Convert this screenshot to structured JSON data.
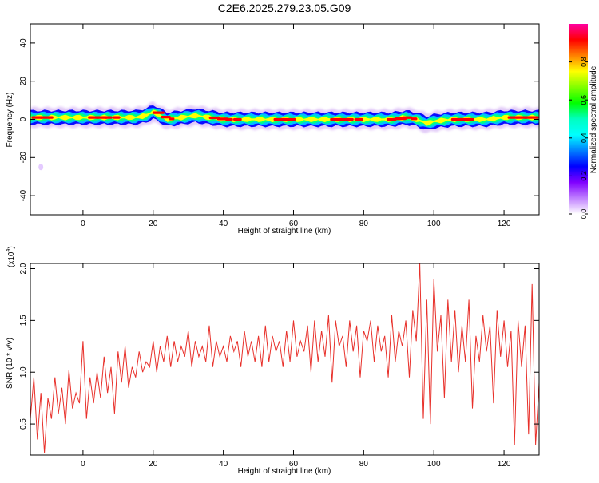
{
  "title": "C2E6.2025.279.23.05.G09",
  "colors": {
    "snr_line": "#e8302a",
    "frame": "#000000",
    "spectrum_band": [
      "#8a2be2",
      "#0000ff",
      "#00bfff",
      "#00ff7f",
      "#ffff00",
      "#ff0000"
    ]
  },
  "chart_data": [
    {
      "type": "heatmap",
      "title": "",
      "xlabel": "Height of straight line (km)",
      "ylabel": "Frequency (Hz)",
      "xlim": [
        -15,
        130
      ],
      "ylim": [
        -50,
        50
      ],
      "x_ticks": [
        0,
        20,
        40,
        60,
        80,
        100,
        120
      ],
      "y_ticks": [
        -40,
        -20,
        0,
        20,
        40
      ],
      "colorbar": {
        "label": "Normalized spectral amplitude",
        "range": [
          0.0,
          1.0
        ],
        "ticks": [
          "0.0",
          "0.2",
          "0.4",
          "0.6",
          "0.8"
        ],
        "colormap": [
          "#ff00a0",
          "#ff0000",
          "#ff8000",
          "#ffff00",
          "#80ff00",
          "#00ff00",
          "#00ffc0",
          "#00ffff",
          "#0080ff",
          "#0000ff",
          "#8000ff",
          "#c080ff",
          "#ffffff"
        ]
      },
      "ridge": {
        "description_hz": "spectral ridge near 0 Hz",
        "x": [
          -14,
          -8,
          -3,
          0,
          5,
          10,
          15,
          18,
          20,
          22,
          24,
          28,
          32,
          36,
          40,
          45,
          50,
          60,
          70,
          80,
          88,
          92,
          95,
          98,
          100,
          105,
          110,
          115,
          120,
          125,
          129
        ],
        "y": [
          1,
          1,
          1,
          1,
          1,
          1,
          1,
          2,
          4,
          2,
          0,
          1,
          2,
          1,
          0,
          0,
          0,
          0,
          0,
          0,
          0,
          1,
          0,
          -2,
          -1,
          0,
          0,
          0,
          1,
          1,
          1
        ]
      },
      "outlier_point": {
        "x": -12,
        "y": -25
      }
    },
    {
      "type": "line",
      "title": "",
      "xlabel": "Height of straight line (km)",
      "ylabel": "SNR (10 * v/v)",
      "y_multiplier_label": "(x10",
      "y_multiplier_exp": "4",
      "xlim": [
        -15,
        130
      ],
      "ylim": [
        0.2,
        2.05
      ],
      "x_ticks": [
        0,
        20,
        40,
        60,
        80,
        100,
        120
      ],
      "y_ticks": [
        "0.5",
        "1.0",
        "1.5",
        "2.0"
      ],
      "series": [
        {
          "x": [
            -15,
            -14,
            -13,
            -12,
            -11,
            -10,
            -9,
            -8,
            -7,
            -6,
            -5,
            -4,
            -3,
            -2,
            -1,
            0,
            1,
            2,
            3,
            4,
            5,
            6,
            7,
            8,
            9,
            10,
            11,
            12,
            13,
            14,
            15,
            16,
            17,
            18,
            19,
            20,
            21,
            22,
            23,
            24,
            25,
            26,
            27,
            28,
            29,
            30,
            31,
            32,
            33,
            34,
            35,
            36,
            37,
            38,
            39,
            40,
            41,
            42,
            43,
            44,
            45,
            46,
            47,
            48,
            49,
            50,
            51,
            52,
            53,
            54,
            55,
            56,
            57,
            58,
            59,
            60,
            61,
            62,
            63,
            64,
            65,
            66,
            67,
            68,
            69,
            70,
            71,
            72,
            73,
            74,
            75,
            76,
            77,
            78,
            79,
            80,
            81,
            82,
            83,
            84,
            85,
            86,
            87,
            88,
            89,
            90,
            91,
            92,
            93,
            94,
            95,
            96,
            97,
            98,
            99,
            100,
            101,
            102,
            103,
            104,
            105,
            106,
            107,
            108,
            109,
            110,
            111,
            112,
            113,
            114,
            115,
            116,
            117,
            118,
            119,
            120,
            121,
            122,
            123,
            124,
            125,
            126,
            127,
            128,
            129,
            130
          ],
          "y": [
            0.55,
            0.95,
            0.35,
            0.8,
            0.22,
            0.75,
            0.55,
            0.95,
            0.6,
            0.85,
            0.5,
            1.02,
            0.65,
            0.8,
            0.7,
            1.3,
            0.55,
            0.95,
            0.7,
            1.0,
            0.75,
            1.15,
            0.8,
            1.05,
            0.6,
            1.2,
            0.9,
            1.25,
            0.85,
            1.05,
            0.95,
            1.2,
            1.0,
            1.1,
            1.05,
            1.3,
            1.0,
            1.25,
            1.1,
            1.35,
            1.05,
            1.3,
            1.1,
            1.25,
            1.15,
            1.4,
            1.05,
            1.3,
            1.15,
            1.25,
            1.1,
            1.45,
            1.05,
            1.3,
            1.15,
            1.25,
            1.1,
            1.35,
            1.2,
            1.3,
            1.05,
            1.4,
            1.15,
            1.3,
            1.1,
            1.35,
            1.05,
            1.45,
            1.1,
            1.35,
            1.2,
            1.3,
            1.05,
            1.4,
            1.1,
            1.5,
            1.15,
            1.3,
            1.2,
            1.45,
            1.0,
            1.5,
            1.1,
            1.4,
            1.15,
            1.55,
            0.9,
            1.5,
            1.25,
            1.35,
            1.05,
            1.5,
            1.2,
            1.45,
            0.95,
            1.4,
            1.3,
            1.5,
            1.1,
            1.45,
            1.2,
            1.35,
            0.95,
            1.55,
            1.1,
            1.4,
            1.25,
            1.5,
            0.95,
            1.6,
            1.3,
            2.05,
            0.55,
            1.7,
            0.5,
            1.9,
            1.2,
            1.55,
            0.75,
            1.7,
            1.1,
            1.6,
            1.0,
            1.45,
            1.1,
            1.7,
            0.65,
            1.35,
            1.1,
            1.55,
            1.2,
            1.45,
            0.7,
            1.6,
            1.15,
            1.5,
            1.05,
            1.4,
            0.3,
            1.5,
            1.05,
            1.45,
            0.4,
            1.85,
            0.3,
            0.9
          ]
        }
      ]
    }
  ]
}
